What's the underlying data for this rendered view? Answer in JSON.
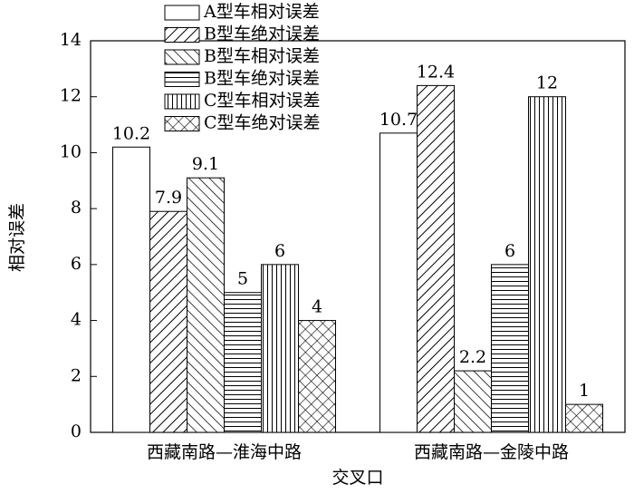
{
  "chart_data": {
    "type": "bar",
    "ylabel": "相对误差",
    "xlabel": "交叉口",
    "categories": [
      "西藏南路—淮海中路",
      "西藏南路—金陵中路"
    ],
    "series": [
      {
        "name": "A型车相对误差",
        "color": "#000000",
        "hatch": "none",
        "values": [
          10.2,
          10.7
        ]
      },
      {
        "name": "B型车绝对误差",
        "color": "#000000",
        "hatch": "diagonal-up",
        "values": [
          7.9,
          12.4
        ]
      },
      {
        "name": "B型车相对误差",
        "color": "#000000",
        "hatch": "diagonal-down",
        "values": [
          9.1,
          2.2
        ]
      },
      {
        "name": "B型车绝对误差",
        "color": "#000000",
        "hatch": "horizontal",
        "values": [
          5,
          6
        ]
      },
      {
        "name": "C型车相对误差",
        "color": "#000000",
        "hatch": "vertical",
        "values": [
          6,
          12
        ]
      },
      {
        "name": "C型车绝对误差",
        "color": "#000000",
        "hatch": "cross",
        "values": [
          4,
          1
        ]
      }
    ],
    "ylim": [
      0,
      14
    ],
    "yticks": [
      0,
      2,
      4,
      6,
      8,
      10,
      12,
      14
    ],
    "grid": false
  }
}
